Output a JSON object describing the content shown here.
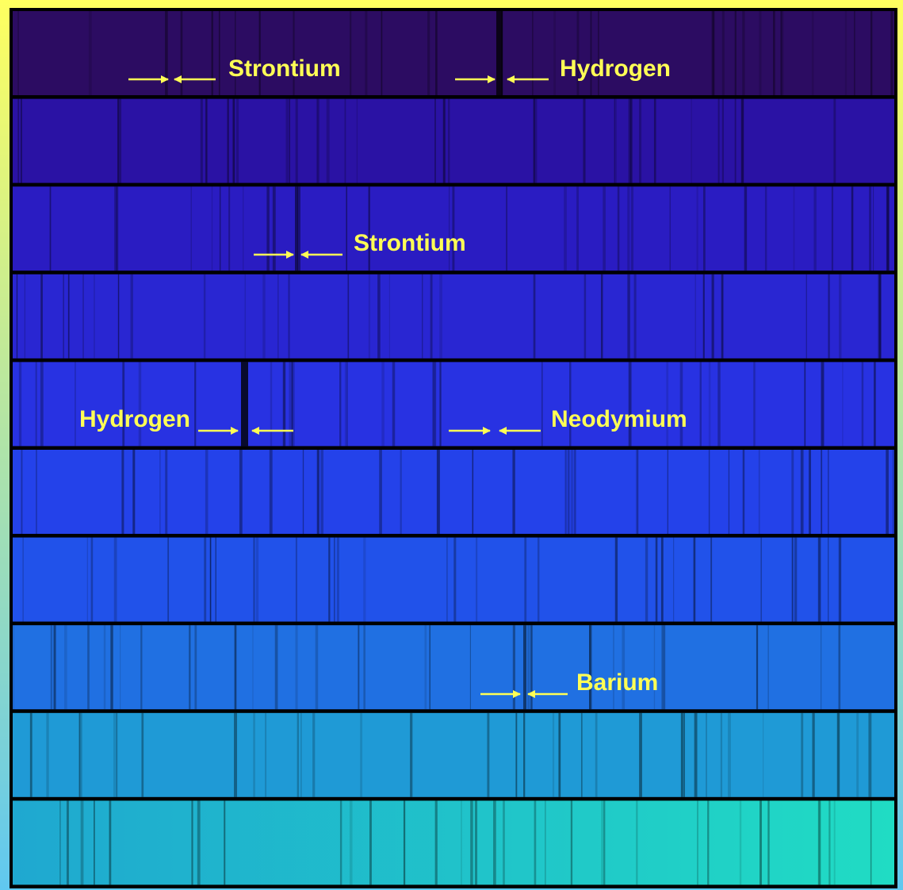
{
  "annotations": [
    "Strontium",
    "Hydrogen",
    "Strontium",
    "Hydrogen",
    "Neodymium",
    "Barium"
  ]
}
